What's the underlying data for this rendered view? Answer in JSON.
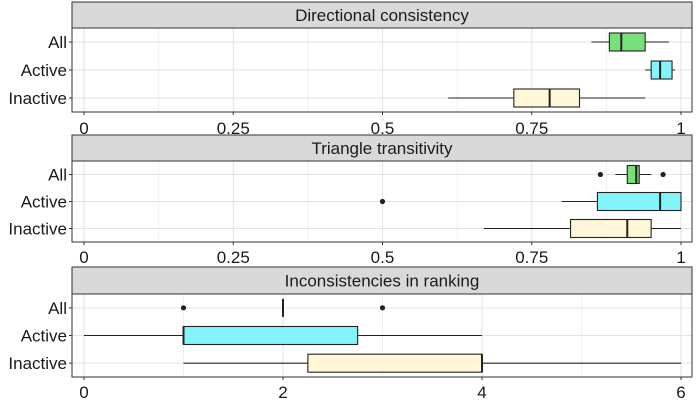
{
  "chart_data": [
    {
      "type": "boxplot",
      "title": "Directional consistency",
      "orientation": "horizontal",
      "categories": [
        "All",
        "Active",
        "Inactive"
      ],
      "xlim": [
        0,
        1
      ],
      "xticks": [
        0,
        0.25,
        0.5,
        0.75,
        1
      ],
      "xtick_labels": [
        "0",
        "0.25",
        "0.5",
        "0.75",
        "1"
      ],
      "grid": true,
      "boxes": [
        {
          "category": "All",
          "min": 0.85,
          "q1": 0.88,
          "median": 0.9,
          "q3": 0.94,
          "max": 0.98,
          "outliers": [],
          "color": "#77e07a"
        },
        {
          "category": "Active",
          "min": 0.94,
          "q1": 0.95,
          "median": 0.965,
          "q3": 0.985,
          "max": 0.99,
          "outliers": [],
          "color": "#84f4fb"
        },
        {
          "category": "Inactive",
          "min": 0.61,
          "q1": 0.72,
          "median": 0.78,
          "q3": 0.83,
          "max": 0.94,
          "outliers": [],
          "color": "#fff7d8"
        }
      ]
    },
    {
      "type": "boxplot",
      "title": "Triangle transitivity",
      "orientation": "horizontal",
      "categories": [
        "All",
        "Active",
        "Inactive"
      ],
      "xlim": [
        0,
        1
      ],
      "xticks": [
        0,
        0.25,
        0.5,
        0.75,
        1
      ],
      "xtick_labels": [
        "0",
        "0.25",
        "0.5",
        "0.75",
        "1"
      ],
      "grid": true,
      "boxes": [
        {
          "category": "All",
          "min": 0.89,
          "q1": 0.91,
          "median": 0.925,
          "q3": 0.93,
          "max": 0.95,
          "outliers": [
            0.865,
            0.97
          ],
          "color": "#77e07a"
        },
        {
          "category": "Active",
          "min": 0.8,
          "q1": 0.86,
          "median": 0.965,
          "q3": 1.0,
          "max": 1.0,
          "outliers": [
            0.5
          ],
          "color": "#84f4fb"
        },
        {
          "category": "Inactive",
          "min": 0.67,
          "q1": 0.815,
          "median": 0.91,
          "q3": 0.95,
          "max": 1.0,
          "outliers": [],
          "color": "#fff7d8"
        }
      ]
    },
    {
      "type": "boxplot",
      "title": "Inconsistencies in ranking",
      "orientation": "horizontal",
      "categories": [
        "All",
        "Active",
        "Inactive"
      ],
      "xlim": [
        0,
        6
      ],
      "xticks": [
        0,
        2,
        4,
        6
      ],
      "xtick_labels": [
        "0",
        "2",
        "4",
        "6"
      ],
      "grid": true,
      "boxes": [
        {
          "category": "All",
          "min": 2,
          "q1": 2,
          "median": 2,
          "q3": 2,
          "max": 2,
          "outliers": [
            1,
            3
          ],
          "color": "#77e07a"
        },
        {
          "category": "Active",
          "min": 0,
          "q1": 1,
          "median": 1,
          "q3": 2.75,
          "max": 4,
          "outliers": [],
          "color": "#84f4fb"
        },
        {
          "category": "Inactive",
          "min": 1,
          "q1": 2.25,
          "median": 4,
          "q3": 4,
          "max": 6,
          "outliers": [],
          "color": "#fff7d8"
        }
      ]
    }
  ]
}
